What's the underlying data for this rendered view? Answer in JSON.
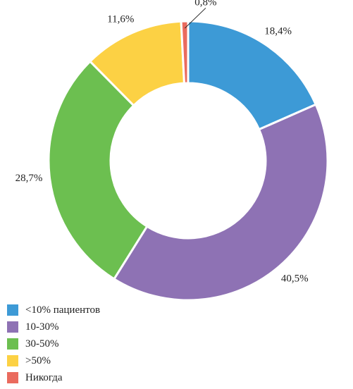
{
  "chart_data": {
    "type": "pie",
    "title": "",
    "categories": [
      "<10% пациентов",
      "10-30%",
      "30-50%",
      ">50%",
      "Никогда"
    ],
    "values": [
      18.4,
      40.5,
      28.7,
      11.6,
      0.8
    ],
    "value_labels": [
      "18,4%",
      "40,5%",
      "28,7%",
      "11,6%",
      "0,8%"
    ],
    "colors": [
      "#3d9ad6",
      "#8e72b4",
      "#6cbf50",
      "#fcd144",
      "#ea6b5e"
    ],
    "donut": true,
    "legend_position": "bottom-left"
  }
}
